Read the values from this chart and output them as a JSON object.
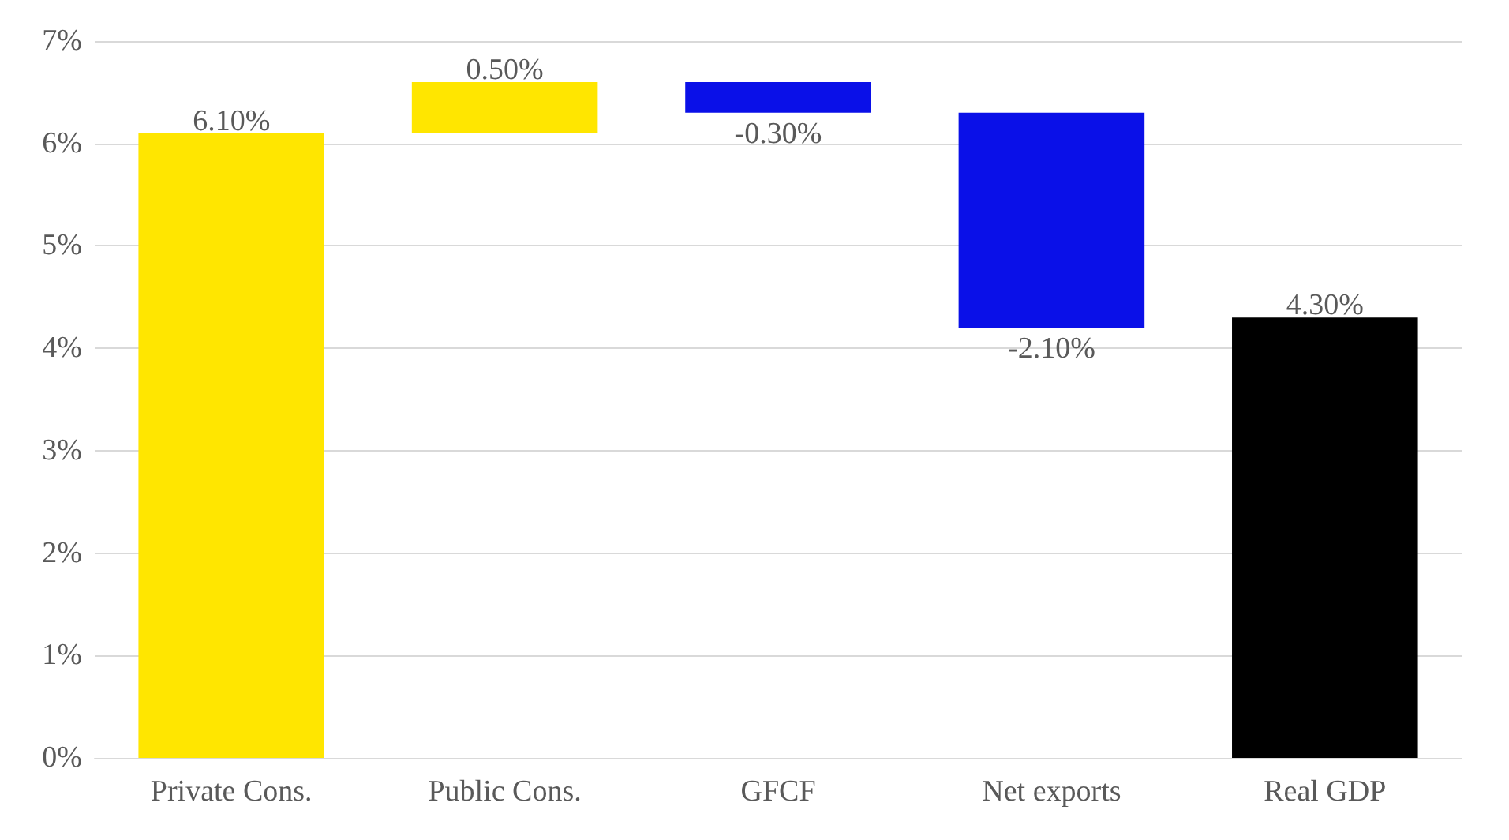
{
  "chart_data": {
    "type": "bar",
    "categories": [
      "Private Cons.",
      "Public Cons.",
      "GFCF",
      "Net exports",
      "Real GDP"
    ],
    "values": [
      6.1,
      0.5,
      -0.3,
      -2.1,
      4.3
    ],
    "base": [
      0,
      6.1,
      6.6,
      6.3,
      0
    ],
    "colors": [
      "#ffe600",
      "#ffe600",
      "#0a10e8",
      "#0a10e8",
      "#000000"
    ],
    "value_labels": [
      "6.10%",
      "0.50%",
      "-0.30%",
      "-2.10%",
      "4.30%"
    ],
    "ylim": [
      0,
      7
    ],
    "yticks": [
      {
        "value": 0,
        "label": "0%"
      },
      {
        "value": 1,
        "label": "1%"
      },
      {
        "value": 2,
        "label": "2%"
      },
      {
        "value": 3,
        "label": "3%"
      },
      {
        "value": 4,
        "label": "4%"
      },
      {
        "value": 5,
        "label": "5%"
      },
      {
        "value": 6,
        "label": "6%"
      },
      {
        "value": 7,
        "label": "7%"
      }
    ],
    "grid": "y"
  }
}
